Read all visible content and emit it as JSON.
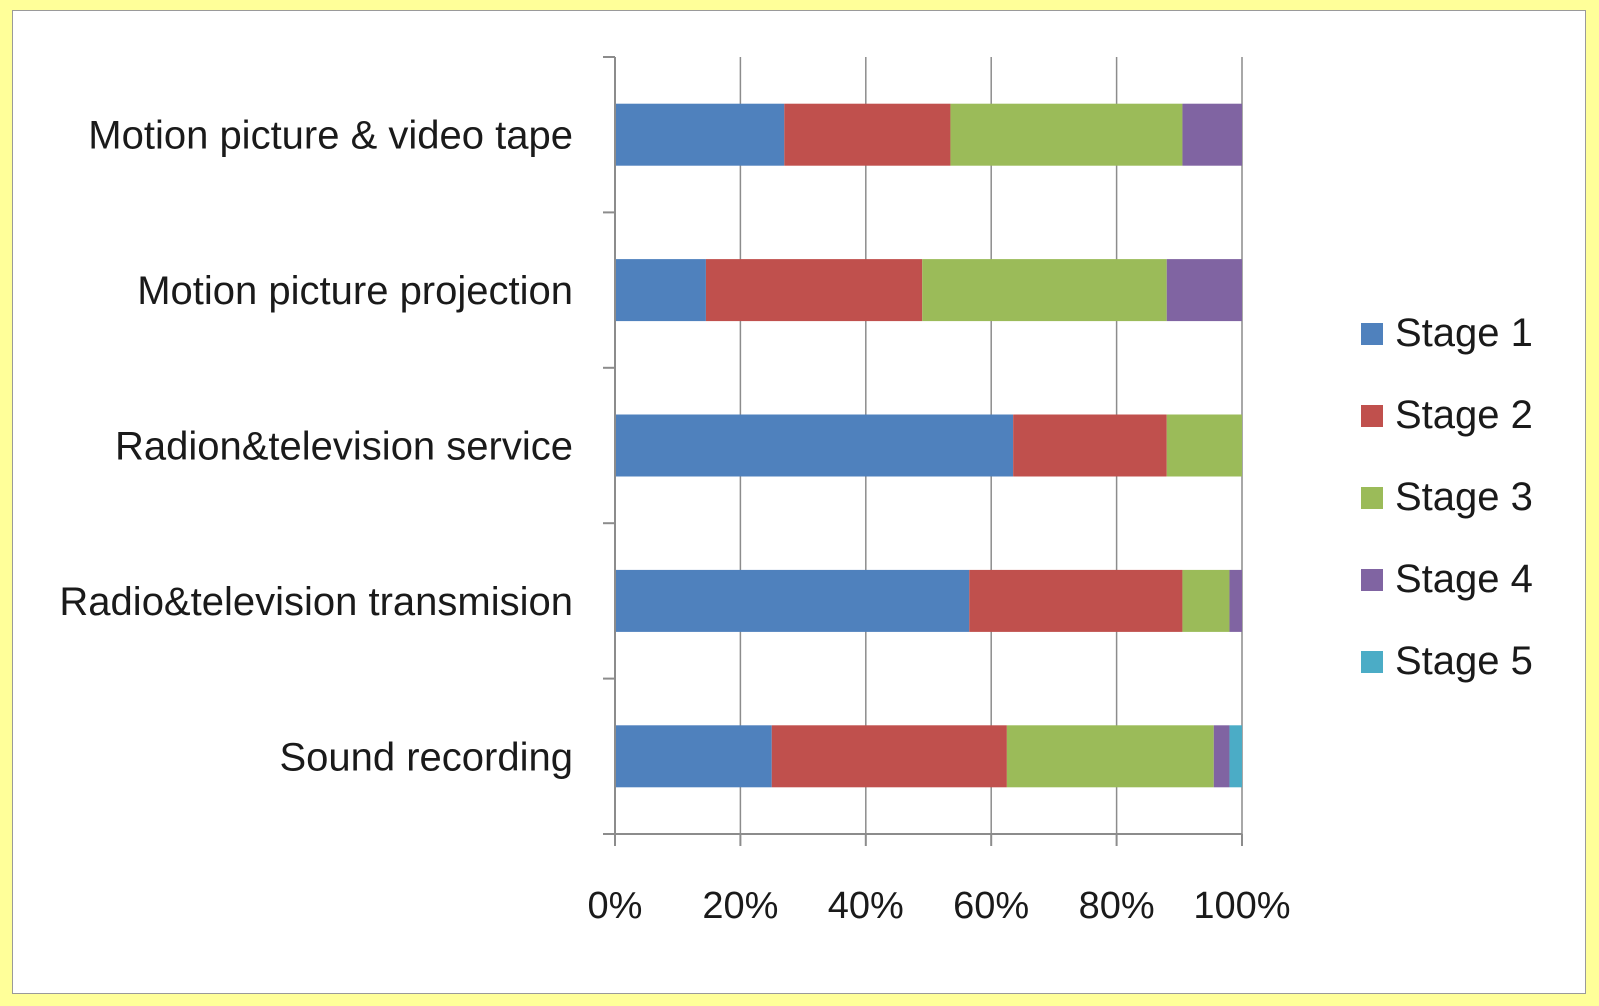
{
  "chart_data": {
    "type": "bar",
    "orientation": "horizontal",
    "stacking": "percent",
    "categories": [
      "Motion picture & video tape",
      "Motion picture projection",
      "Radion&television service",
      "Radio&television transmision",
      "Sound recording"
    ],
    "series": [
      {
        "name": "Stage 1",
        "color": "#4f81bd",
        "values": [
          27,
          14.5,
          63.5,
          56.5,
          25
        ]
      },
      {
        "name": "Stage 2",
        "color": "#c0504d",
        "values": [
          26.5,
          34.5,
          24.5,
          34,
          37.5
        ]
      },
      {
        "name": "Stage 3",
        "color": "#9bbb59",
        "values": [
          37,
          39,
          12,
          7.5,
          33
        ]
      },
      {
        "name": "Stage 4",
        "color": "#8064a2",
        "values": [
          9.5,
          12,
          0,
          2,
          2.5
        ]
      },
      {
        "name": "Stage 5",
        "color": "#4bacc6",
        "values": [
          0,
          0,
          0,
          0,
          2
        ]
      }
    ],
    "xlim": [
      0,
      100
    ],
    "x_ticks": [
      "0%",
      "20%",
      "40%",
      "60%",
      "80%",
      "100%"
    ],
    "grid": "vertical",
    "legend": "right",
    "title": "",
    "xlabel": "",
    "ylabel": ""
  }
}
